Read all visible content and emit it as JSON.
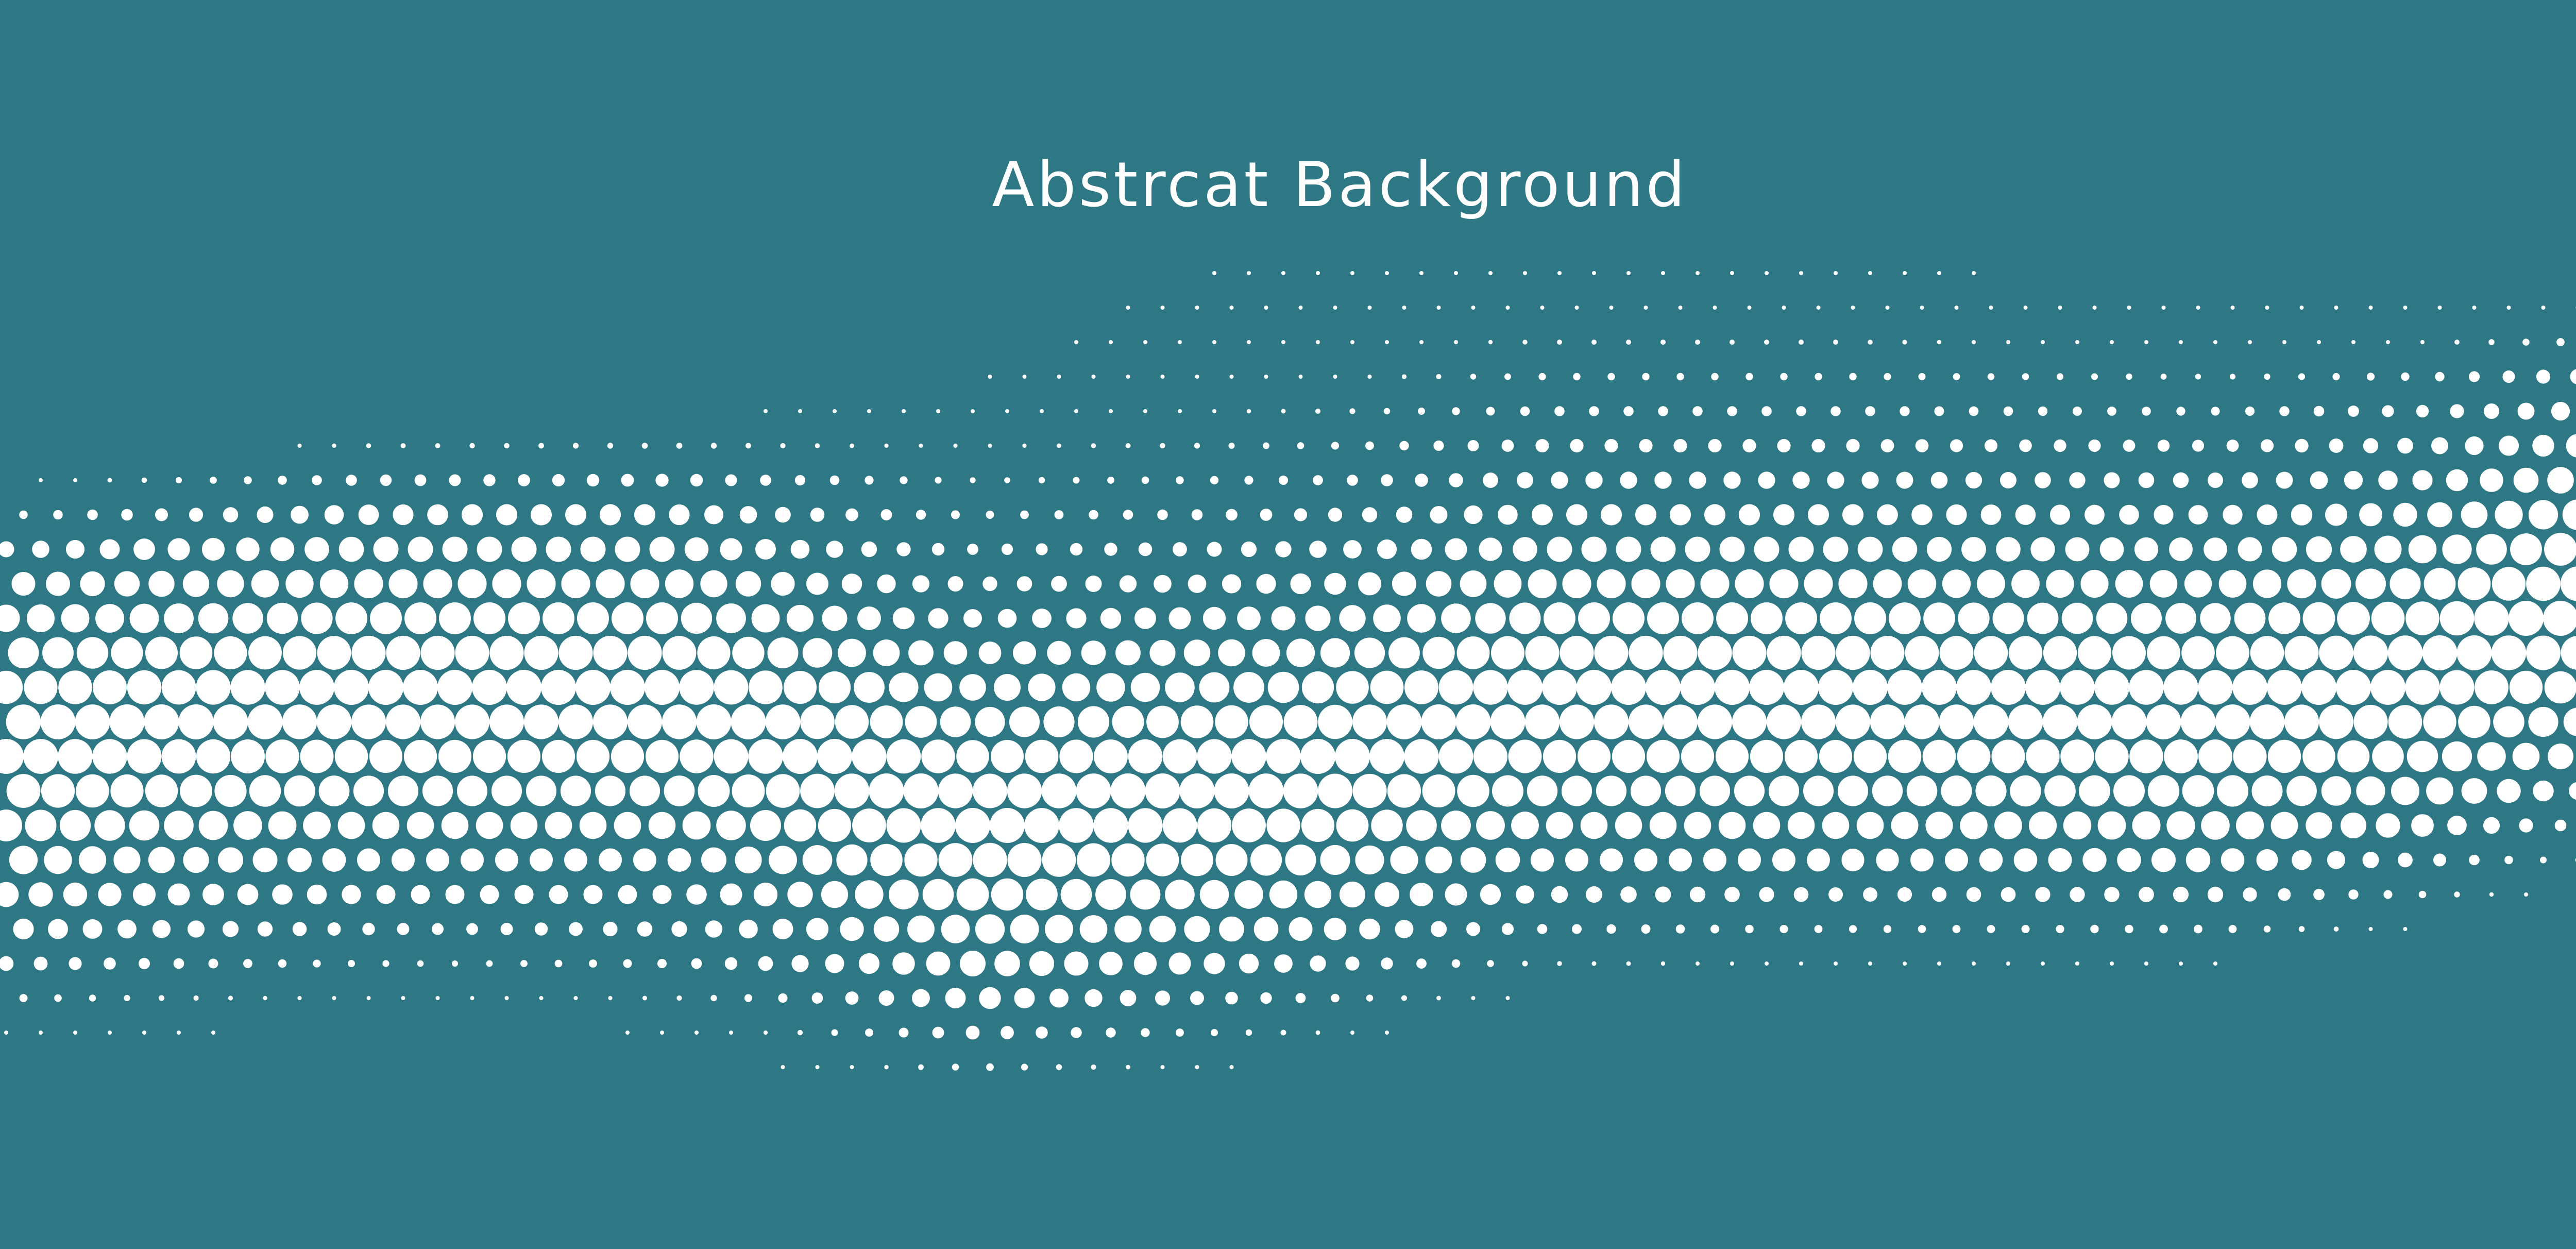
{
  "title": "Abstrcat Background",
  "colors": {
    "background": "#2e7785",
    "dots": "#ffffff",
    "title": "#ffffff"
  },
  "decoration": {
    "icon": "halftone-dot-wave"
  }
}
